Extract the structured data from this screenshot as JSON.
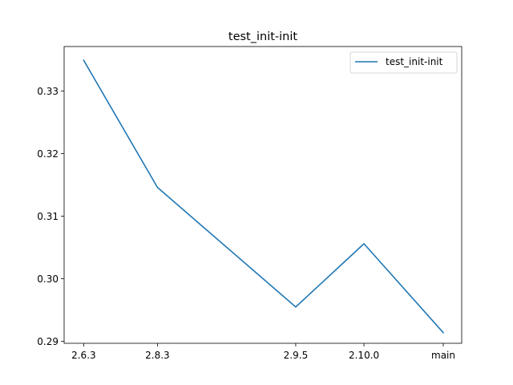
{
  "chart_data": {
    "type": "line",
    "title": "test_init-init",
    "xlabel": "",
    "ylabel": "",
    "x": [
      "2.6.3",
      "2.8.3",
      "2.9.5",
      "2.10.0",
      "main"
    ],
    "x_positions": [
      0,
      2,
      5.75,
      7.6,
      9.75
    ],
    "x_tick_positions": [
      0,
      2,
      5.75,
      7.6,
      9.75
    ],
    "series": [
      {
        "name": "test_init-init",
        "color": "#1f77b4",
        "values": [
          0.3349,
          0.3146,
          0.2955,
          0.3056,
          0.2914
        ]
      }
    ],
    "xlim": [
      -0.53,
      10.25
    ],
    "ylim": [
      0.2897,
      0.3371
    ],
    "yticks": [
      0.29,
      0.3,
      0.31,
      0.32,
      0.33
    ],
    "ytick_labels": [
      "0.29",
      "0.30",
      "0.31",
      "0.32",
      "0.33"
    ],
    "grid": false,
    "legend_position": "top-right"
  }
}
